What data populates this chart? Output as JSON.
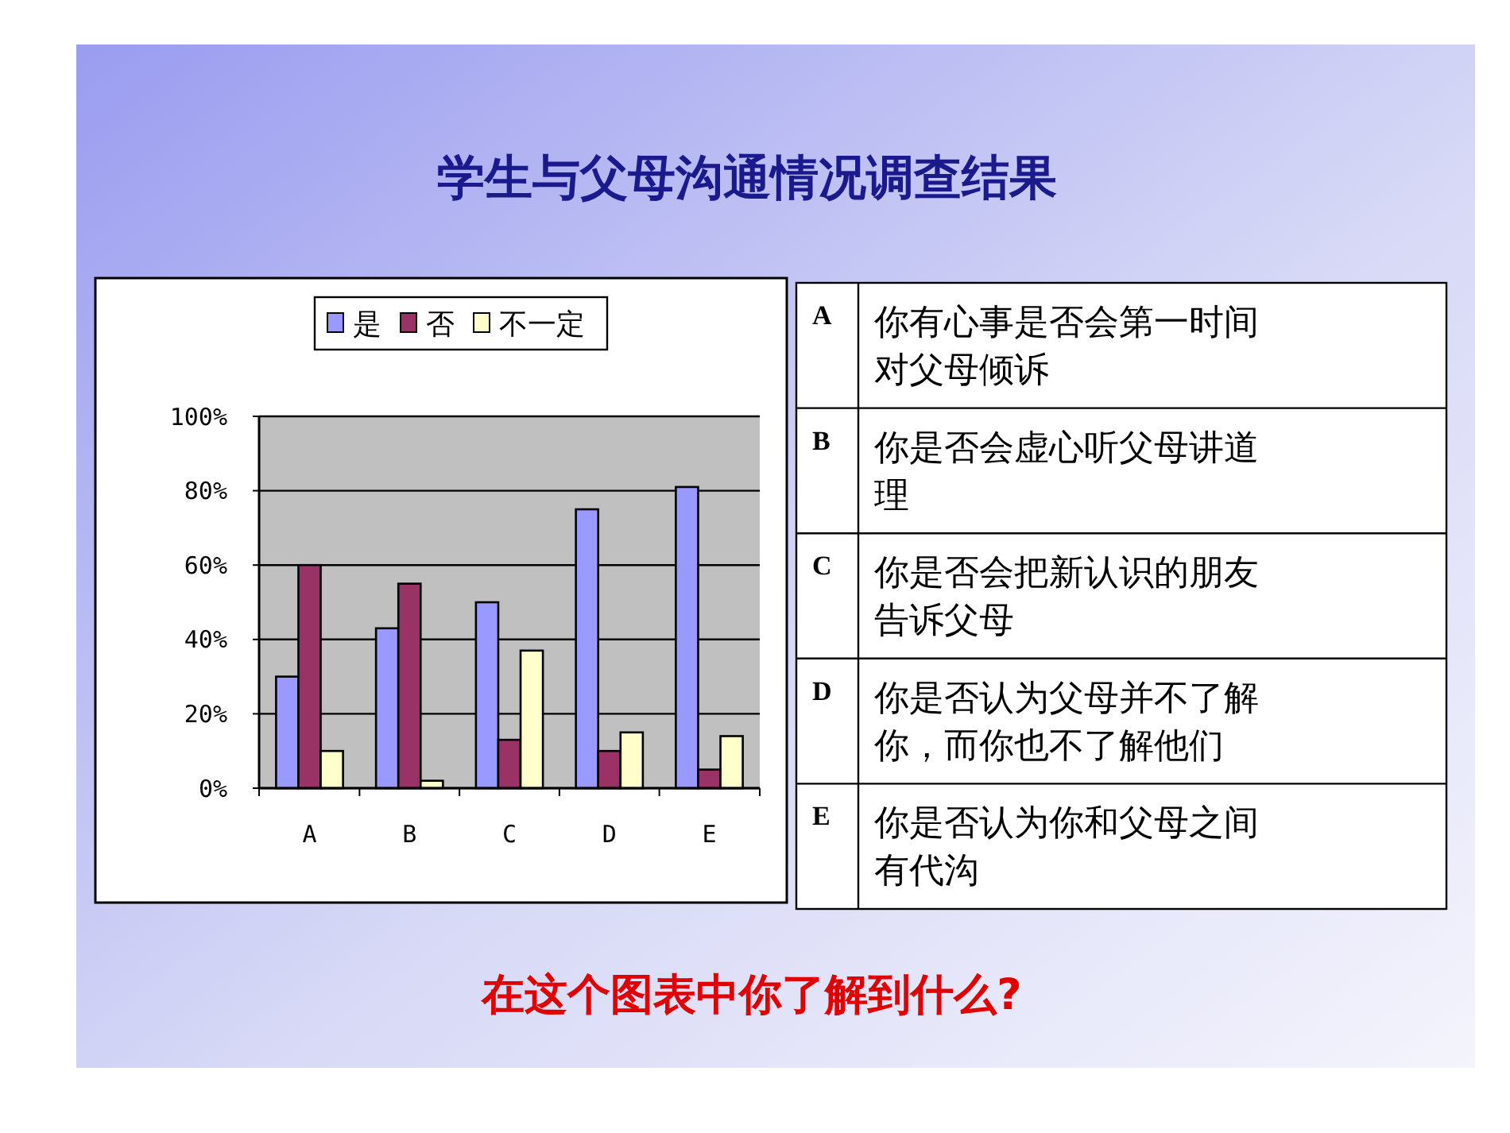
{
  "chart_data": {
    "type": "bar",
    "title": "学生与父母沟通情况调查结果",
    "categories": [
      "A",
      "B",
      "C",
      "D",
      "E"
    ],
    "series": [
      {
        "name": "是",
        "color": "#9999ff",
        "values": [
          30,
          43,
          50,
          75,
          81
        ]
      },
      {
        "name": "否",
        "color": "#993366",
        "values": [
          60,
          55,
          13,
          10,
          5
        ]
      },
      {
        "name": "不一定",
        "color": "#ffffcc",
        "values": [
          10,
          2,
          37,
          15,
          14
        ]
      }
    ],
    "ylim": [
      0,
      100
    ],
    "yticks": [
      {
        "value": 0,
        "label": "0%"
      },
      {
        "value": 20,
        "label": "20%"
      },
      {
        "value": 40,
        "label": "40%"
      },
      {
        "value": 60,
        "label": "60%"
      },
      {
        "value": 80,
        "label": "80%"
      },
      {
        "value": 100,
        "label": "100%"
      }
    ],
    "grid": "y",
    "legend": "top",
    "annotations": [
      "A",
      "你有心事是否会第一时间对父母倾诉",
      "B",
      "你是否会虚心听父母讲道理",
      "C",
      "你是否会把新认识的朋友告诉父母",
      "D",
      "你是否认为父母并不了解你，而你也不了解他们",
      "E",
      "你是否认为你和父母之间有代沟",
      "在这个图表中你了解到什么?"
    ]
  }
}
